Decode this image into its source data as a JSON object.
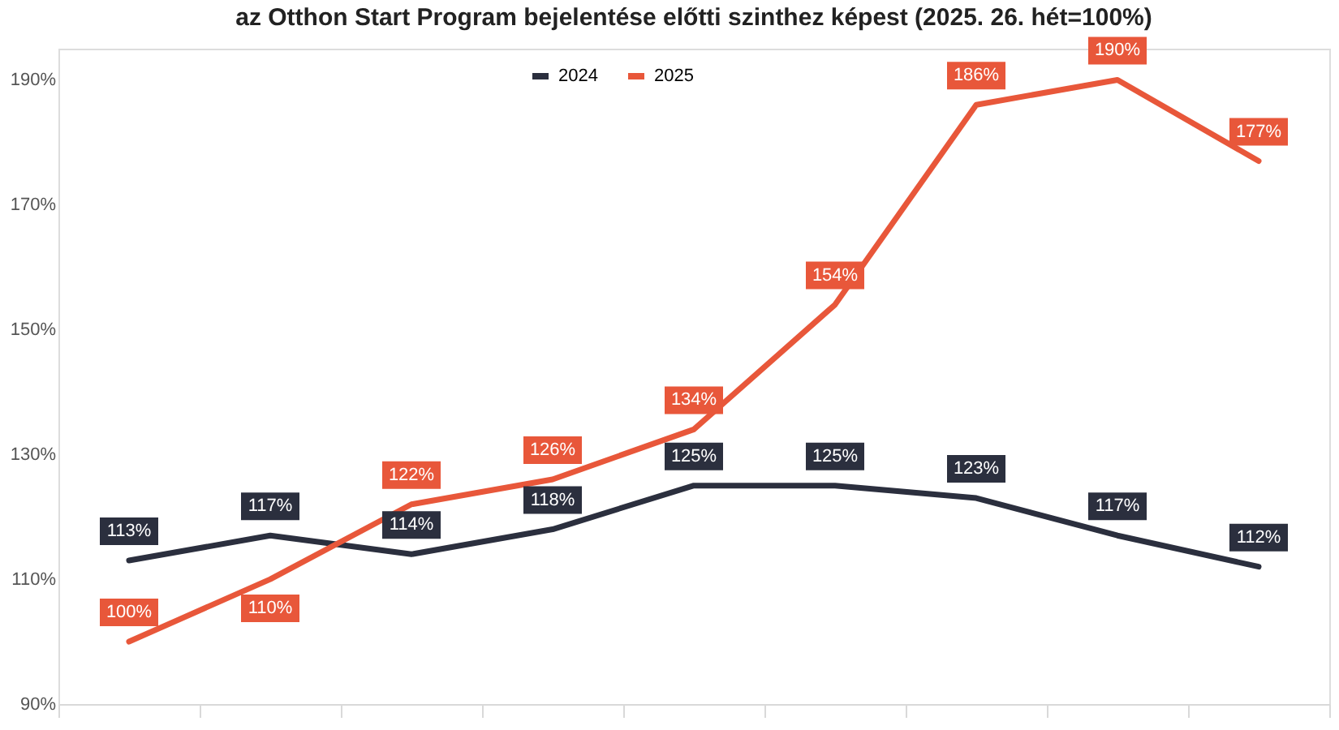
{
  "chart_data": {
    "type": "line",
    "title": "az Otthon Start Program bejelentése előtti szinthez képest (2025. 26. hét=100%)",
    "categories": [
      null,
      null,
      null,
      null,
      null,
      null,
      null,
      null,
      null
    ],
    "series": [
      {
        "name": "2024",
        "color": "#2b2f3e",
        "values": [
          113,
          117,
          114,
          118,
          125,
          125,
          123,
          117,
          112
        ],
        "value_labels": [
          "113%",
          "117%",
          "114%",
          "118%",
          "125%",
          "125%",
          "123%",
          "117%",
          "112%"
        ]
      },
      {
        "name": "2025",
        "color": "#e8573a",
        "values": [
          100,
          110,
          122,
          126,
          134,
          154,
          186,
          190,
          177
        ],
        "value_labels": [
          "100%",
          "110%",
          "122%",
          "126%",
          "134%",
          "154%",
          "186%",
          "190%",
          "177%"
        ]
      }
    ],
    "ylim": [
      90,
      195
    ],
    "yticks": [
      {
        "value": 90,
        "label": "90%"
      },
      {
        "value": 110,
        "label": "110%"
      },
      {
        "value": 130,
        "label": "130%"
      },
      {
        "value": 150,
        "label": "150%"
      },
      {
        "value": 170,
        "label": "170%"
      },
      {
        "value": 190,
        "label": "190%"
      }
    ],
    "grid": false,
    "legend": "top",
    "marker": "none",
    "line_style": "solid"
  }
}
